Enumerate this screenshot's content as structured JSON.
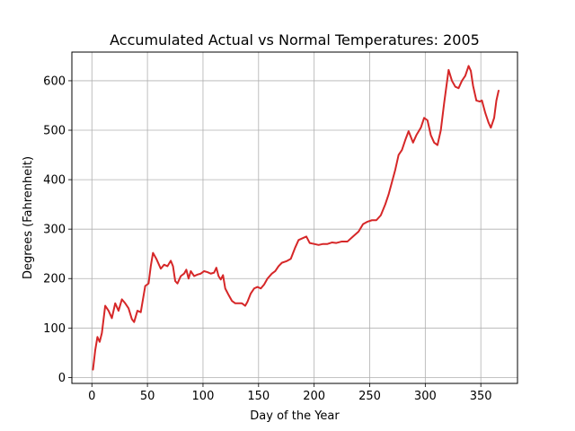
{
  "chart_data": {
    "type": "line",
    "title": "Accumulated Actual vs Normal Temperatures: 2005",
    "xlabel": "Day of the Year",
    "ylabel": "Degrees (Fahrenheit)",
    "xlim": [
      -18,
      383
    ],
    "ylim": [
      -12,
      658
    ],
    "xticks": [
      0,
      50,
      100,
      150,
      200,
      250,
      300,
      350
    ],
    "yticks": [
      0,
      100,
      200,
      300,
      400,
      500,
      600
    ],
    "grid": true,
    "line_color": "#d62728",
    "series": [
      {
        "name": "",
        "points": [
          [
            1,
            16
          ],
          [
            3,
            55
          ],
          [
            5,
            82
          ],
          [
            7,
            72
          ],
          [
            9,
            90
          ],
          [
            12,
            145
          ],
          [
            15,
            135
          ],
          [
            18,
            120
          ],
          [
            21,
            150
          ],
          [
            24,
            135
          ],
          [
            27,
            158
          ],
          [
            30,
            150
          ],
          [
            33,
            140
          ],
          [
            36,
            118
          ],
          [
            38,
            112
          ],
          [
            41,
            135
          ],
          [
            44,
            132
          ],
          [
            48,
            185
          ],
          [
            51,
            190
          ],
          [
            53,
            225
          ],
          [
            55,
            252
          ],
          [
            58,
            240
          ],
          [
            62,
            220
          ],
          [
            65,
            228
          ],
          [
            68,
            225
          ],
          [
            71,
            236
          ],
          [
            73,
            225
          ],
          [
            75,
            195
          ],
          [
            77,
            190
          ],
          [
            80,
            205
          ],
          [
            83,
            210
          ],
          [
            85,
            218
          ],
          [
            87,
            200
          ],
          [
            89,
            215
          ],
          [
            92,
            205
          ],
          [
            95,
            208
          ],
          [
            98,
            210
          ],
          [
            101,
            215
          ],
          [
            104,
            213
          ],
          [
            107,
            210
          ],
          [
            110,
            212
          ],
          [
            112,
            222
          ],
          [
            114,
            205
          ],
          [
            116,
            198
          ],
          [
            118,
            207
          ],
          [
            120,
            180
          ],
          [
            123,
            167
          ],
          [
            126,
            155
          ],
          [
            129,
            150
          ],
          [
            132,
            150
          ],
          [
            135,
            150
          ],
          [
            138,
            145
          ],
          [
            140,
            153
          ],
          [
            143,
            170
          ],
          [
            146,
            180
          ],
          [
            149,
            183
          ],
          [
            152,
            180
          ],
          [
            155,
            188
          ],
          [
            158,
            200
          ],
          [
            162,
            210
          ],
          [
            165,
            215
          ],
          [
            168,
            225
          ],
          [
            171,
            232
          ],
          [
            175,
            235
          ],
          [
            179,
            240
          ],
          [
            183,
            263
          ],
          [
            186,
            278
          ],
          [
            190,
            282
          ],
          [
            193,
            285
          ],
          [
            196,
            272
          ],
          [
            200,
            270
          ],
          [
            204,
            268
          ],
          [
            208,
            270
          ],
          [
            212,
            270
          ],
          [
            216,
            273
          ],
          [
            220,
            272
          ],
          [
            225,
            275
          ],
          [
            230,
            275
          ],
          [
            235,
            285
          ],
          [
            240,
            295
          ],
          [
            244,
            310
          ],
          [
            248,
            315
          ],
          [
            252,
            318
          ],
          [
            256,
            318
          ],
          [
            260,
            328
          ],
          [
            264,
            350
          ],
          [
            267,
            370
          ],
          [
            270,
            395
          ],
          [
            273,
            420
          ],
          [
            276,
            450
          ],
          [
            279,
            460
          ],
          [
            282,
            480
          ],
          [
            285,
            498
          ],
          [
            289,
            475
          ],
          [
            292,
            490
          ],
          [
            296,
            505
          ],
          [
            299,
            525
          ],
          [
            302,
            520
          ],
          [
            305,
            490
          ],
          [
            308,
            475
          ],
          [
            311,
            470
          ],
          [
            314,
            500
          ],
          [
            317,
            555
          ],
          [
            321,
            622
          ],
          [
            324,
            600
          ],
          [
            327,
            588
          ],
          [
            330,
            585
          ],
          [
            333,
            600
          ],
          [
            336,
            610
          ],
          [
            339,
            630
          ],
          [
            341,
            620
          ],
          [
            343,
            590
          ],
          [
            346,
            560
          ],
          [
            349,
            558
          ],
          [
            351,
            560
          ],
          [
            354,
            535
          ],
          [
            357,
            515
          ],
          [
            359,
            505
          ],
          [
            362,
            525
          ],
          [
            364,
            560
          ],
          [
            366,
            580
          ]
        ]
      }
    ]
  }
}
